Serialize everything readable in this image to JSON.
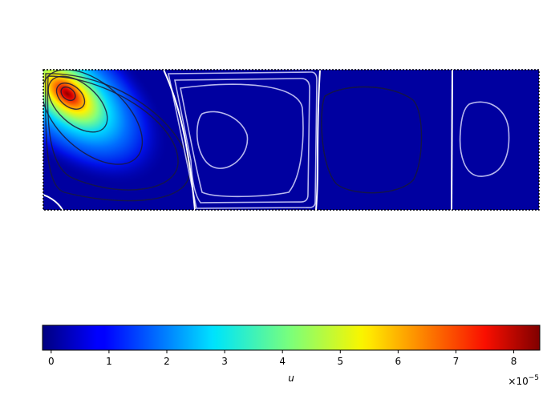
{
  "chart_data": {
    "type": "heatmap",
    "title": "",
    "colormap": "jet",
    "colorbar": {
      "label": "u",
      "ticks": [
        0,
        1,
        2,
        3,
        4,
        5,
        6,
        7,
        8
      ],
      "tick_labels": [
        "0",
        "1",
        "2",
        "3",
        "4",
        "5",
        "6",
        "7",
        "8"
      ],
      "range": [
        -0.15,
        8.45
      ],
      "multiplier_base": "×10",
      "multiplier_exponent": "−5",
      "orientation": "horizontal",
      "placement": "bottom"
    },
    "field": {
      "description_values": "streamfunction of a lid/flow-driven cavity; primary vortex peak near upper-left corner",
      "peak_value": 8.3,
      "peak_location": [
        0.05,
        0.85
      ],
      "domain_x": [
        0,
        1
      ],
      "domain_y": [
        0,
        1
      ],
      "background_value": 0.0
    },
    "separatrices": [
      0.31,
      0.56,
      0.83
    ],
    "colors": {
      "dark_contour": "#1a1a3a",
      "light_contour": "#b8b8ee",
      "separatrix": "#ffffff",
      "frame": "#000000"
    }
  }
}
